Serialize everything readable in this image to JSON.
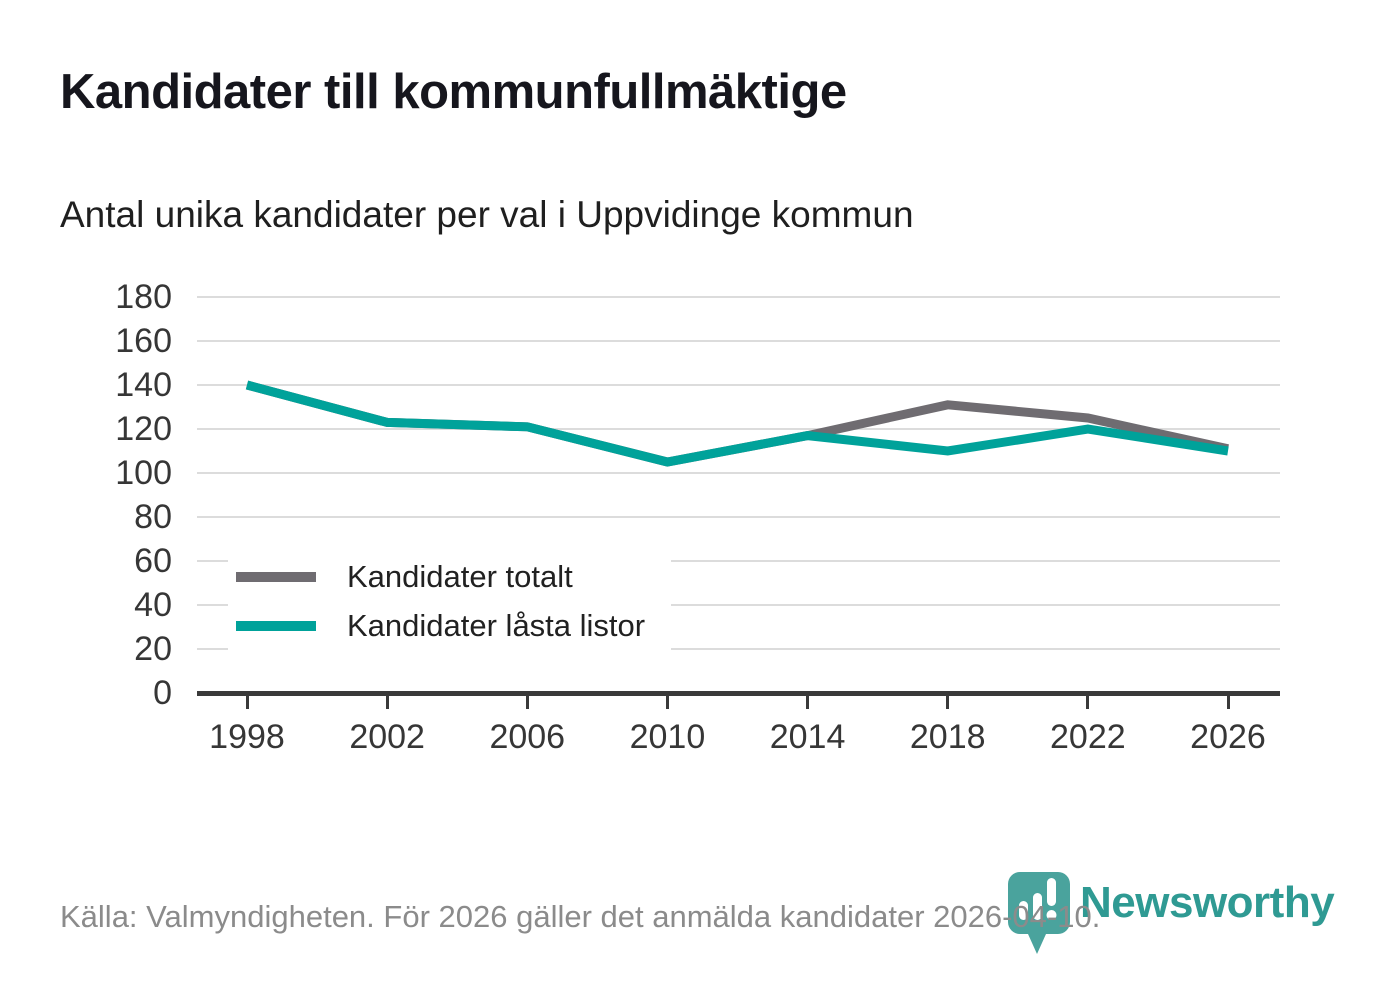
{
  "header": {
    "title": "Kandidater till kommunfullmäktige",
    "subtitle": "Antal unika kandidater per val i Uppvidinge kommun"
  },
  "chart_data": {
    "type": "line",
    "title": "Kandidater till kommunfullmäktige",
    "subtitle": "Antal unika kandidater per val i Uppvidinge kommun",
    "x": [
      1998,
      2002,
      2006,
      2010,
      2014,
      2018,
      2022,
      2026
    ],
    "series": [
      {
        "name": "Kandidater totalt",
        "color": "#6f6c71",
        "values": [
          140,
          123,
          121,
          105,
          117,
          131,
          125,
          111
        ]
      },
      {
        "name": "Kandidater låsta listor",
        "color": "#00a29a",
        "values": [
          140,
          123,
          121,
          105,
          117,
          110,
          120,
          110
        ]
      }
    ],
    "ylim": [
      0,
      180
    ],
    "yticks": [
      0,
      20,
      40,
      60,
      80,
      100,
      120,
      140,
      160,
      180
    ],
    "grid": "horizontal",
    "legend_position": "inside-bottom-left"
  },
  "footer": {
    "source": "Källa: Valmyndigheten. För 2026 gäller det anmälda kandidater 2026-04-10."
  },
  "logo": {
    "text": "Newsworthy",
    "icon": "newsworthy-pin-barchart-icon",
    "icon_color": "#4aa39d",
    "text_color": "#2f9a93"
  },
  "colors": {
    "accent_teal": "#00a29a",
    "line_gray": "#6f6c71",
    "gridline": "#dcdcdc",
    "axis": "#3a3a3a",
    "footer_text": "#8b8b8b"
  }
}
